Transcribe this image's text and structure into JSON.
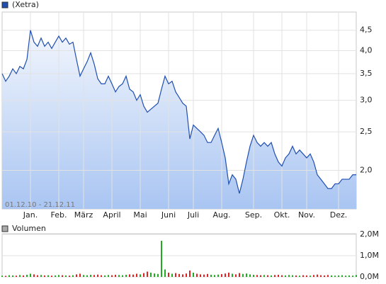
{
  "chart_data": [
    {
      "type": "area",
      "legend": "(Xetra)",
      "date_range": "01.12.10 - 21.12.11",
      "color": "#1f4fb0",
      "fill_top": "#f2f6fd",
      "fill_bottom": "#a9c5f2",
      "log_scale": true,
      "grid": true,
      "xlim": [
        0,
        100
      ],
      "xticks": [
        {
          "value": 8,
          "label": "Jan."
        },
        {
          "value": 16,
          "label": "Feb."
        },
        {
          "value": 23,
          "label": "März"
        },
        {
          "value": 31,
          "label": "April"
        },
        {
          "value": 39,
          "label": "Mai"
        },
        {
          "value": 47,
          "label": "Juni"
        },
        {
          "value": 54,
          "label": "Juli"
        },
        {
          "value": 62,
          "label": "Aug."
        },
        {
          "value": 71,
          "label": "Sep."
        },
        {
          "value": 79,
          "label": "Okt."
        },
        {
          "value": 86,
          "label": "Nov."
        },
        {
          "value": 95,
          "label": "Dez."
        }
      ],
      "ylim": [
        1.6,
        5.0
      ],
      "yticks": [
        {
          "value": 2.0,
          "label": "2,0"
        },
        {
          "value": 2.5,
          "label": "2,5"
        },
        {
          "value": 3.0,
          "label": "3,0"
        },
        {
          "value": 3.5,
          "label": "3,5"
        },
        {
          "value": 4.0,
          "label": "4,0"
        },
        {
          "value": 4.5,
          "label": "4,5"
        }
      ],
      "values": [
        3.5,
        3.35,
        3.45,
        3.6,
        3.5,
        3.65,
        3.6,
        3.8,
        4.5,
        4.2,
        4.1,
        4.3,
        4.1,
        4.2,
        4.05,
        4.2,
        4.35,
        4.2,
        4.3,
        4.15,
        4.2,
        3.8,
        3.45,
        3.6,
        3.75,
        3.95,
        3.7,
        3.4,
        3.3,
        3.3,
        3.45,
        3.3,
        3.15,
        3.25,
        3.3,
        3.45,
        3.2,
        3.15,
        3.0,
        3.1,
        2.9,
        2.8,
        2.85,
        2.9,
        2.95,
        3.2,
        3.45,
        3.3,
        3.35,
        3.15,
        3.05,
        2.95,
        2.9,
        2.4,
        2.6,
        2.55,
        2.5,
        2.45,
        2.35,
        2.35,
        2.45,
        2.55,
        2.35,
        2.15,
        1.85,
        1.95,
        1.9,
        1.75,
        1.9,
        2.1,
        2.3,
        2.45,
        2.35,
        2.3,
        2.35,
        2.3,
        2.35,
        2.2,
        2.1,
        2.05,
        2.15,
        2.2,
        2.3,
        2.2,
        2.25,
        2.2,
        2.15,
        2.2,
        2.1,
        1.95,
        1.9,
        1.85,
        1.8,
        1.8,
        1.85,
        1.85,
        1.9,
        1.9,
        1.9,
        1.95,
        1.95
      ]
    },
    {
      "type": "bar",
      "legend": "Volumen",
      "color": "#999999",
      "up_color": "#22aa22",
      "down_color": "#dd2222",
      "xlim": [
        0,
        100
      ],
      "ylim": [
        0,
        2000000
      ],
      "yticks": [
        {
          "value": 0,
          "label": "0,0M"
        },
        {
          "value": 1000000,
          "label": "1,0M"
        },
        {
          "value": 2000000,
          "label": "2,0M"
        }
      ],
      "values": [
        60000,
        50000,
        80000,
        70000,
        60000,
        90000,
        70000,
        100000,
        150000,
        120000,
        80000,
        90000,
        70000,
        80000,
        60000,
        70000,
        90000,
        80000,
        70000,
        60000,
        80000,
        120000,
        150000,
        90000,
        80000,
        100000,
        90000,
        110000,
        80000,
        70000,
        90000,
        80000,
        100000,
        90000,
        80000,
        100000,
        120000,
        110000,
        150000,
        120000,
        180000,
        250000,
        200000,
        160000,
        140000,
        1700000,
        350000,
        200000,
        150000,
        180000,
        140000,
        120000,
        160000,
        300000,
        200000,
        150000,
        120000,
        110000,
        140000,
        100000,
        90000,
        110000,
        130000,
        160000,
        200000,
        150000,
        120000,
        180000,
        140000,
        160000,
        120000,
        100000,
        90000,
        80000,
        90000,
        80000,
        70000,
        90000,
        100000,
        80000,
        70000,
        90000,
        80000,
        70000,
        60000,
        80000,
        70000,
        60000,
        90000,
        110000,
        80000,
        70000,
        90000,
        70000,
        60000,
        70000,
        80000,
        60000,
        70000,
        60000,
        90000
      ]
    }
  ]
}
